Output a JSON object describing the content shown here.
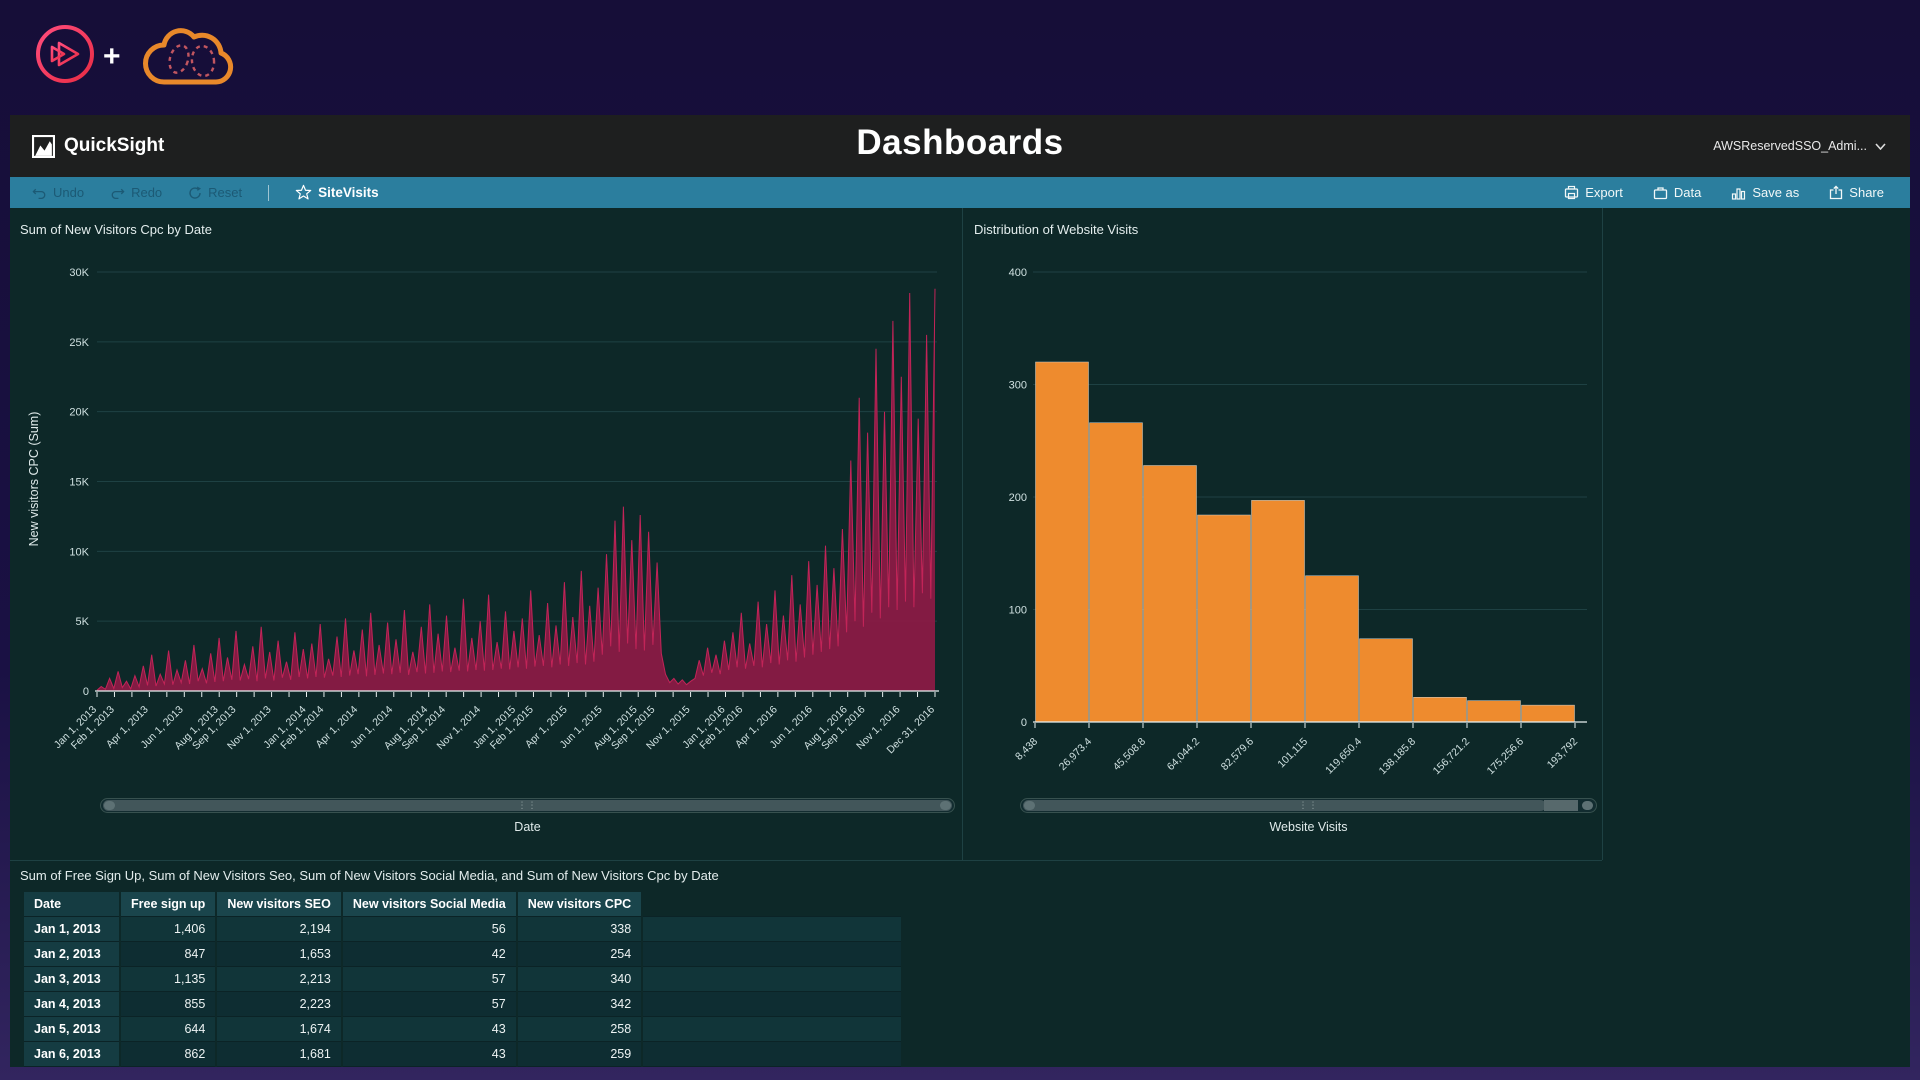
{
  "branding": {
    "plus": "+"
  },
  "app_header": {
    "product": "QuickSight",
    "title": "Dashboards",
    "account": "AWSReservedSSO_Admi..."
  },
  "toolbar": {
    "undo": "Undo",
    "redo": "Redo",
    "reset": "Reset",
    "dashboard_name": "SiteVisits",
    "export": "Export",
    "data": "Data",
    "save_as": "Save as",
    "share": "Share"
  },
  "colors": {
    "toolbar": "#2b7e9e",
    "content_bg": "#0d2828",
    "area_fill": "#8a1a45",
    "area_stroke": "#c22458",
    "bar_fill": "#ee8b2e",
    "grid": "#1e4143",
    "axis": "#e8f0f0",
    "tick_text": "#cfe0e0"
  },
  "chart_data": [
    {
      "type": "area",
      "title": "Sum of New Visitors Cpc by Date",
      "xlabel": "Date",
      "ylabel": "New visitors CPC (Sum)",
      "ylim": [
        0,
        30000
      ],
      "ytick_labels": [
        "30K",
        "25K",
        "20K",
        "15K",
        "10K",
        "5K",
        "0"
      ],
      "x_range": [
        "Jan 1, 2013",
        "Dec 31, 2016"
      ],
      "xticks": [
        {
          "label": "Jan 1, 2013",
          "pos": 0.0
        },
        {
          "label": "Feb 1, 2013",
          "pos": 0.0212
        },
        {
          "label": "Apr 1, 2013",
          "pos": 0.0616
        },
        {
          "label": "Jun 1, 2013",
          "pos": 0.1034
        },
        {
          "label": "Aug 1, 2013",
          "pos": 0.1452
        },
        {
          "label": "Sep 1, 2013",
          "pos": 0.1664
        },
        {
          "label": "Nov 1, 2013",
          "pos": 0.2082
        },
        {
          "label": "Jan 1, 2014",
          "pos": 0.25
        },
        {
          "label": "Feb 1, 2014",
          "pos": 0.2712
        },
        {
          "label": "Apr 1, 2014",
          "pos": 0.3116
        },
        {
          "label": "Jun 1, 2014",
          "pos": 0.3534
        },
        {
          "label": "Aug 1, 2014",
          "pos": 0.3952
        },
        {
          "label": "Sep 1, 2014",
          "pos": 0.4164
        },
        {
          "label": "Nov 1, 2014",
          "pos": 0.4582
        },
        {
          "label": "Jan 1, 2015",
          "pos": 0.5
        },
        {
          "label": "Feb 1, 2015",
          "pos": 0.5212
        },
        {
          "label": "Apr 1, 2015",
          "pos": 0.5616
        },
        {
          "label": "Jun 1, 2015",
          "pos": 0.6034
        },
        {
          "label": "Aug 1, 2015",
          "pos": 0.6452
        },
        {
          "label": "Sep 1, 2015",
          "pos": 0.6664
        },
        {
          "label": "Nov 1, 2015",
          "pos": 0.7082
        },
        {
          "label": "Jan 1, 2016",
          "pos": 0.75
        },
        {
          "label": "Feb 1, 2016",
          "pos": 0.7712
        },
        {
          "label": "Apr 1, 2016",
          "pos": 0.8123
        },
        {
          "label": "Jun 1, 2016",
          "pos": 0.8541
        },
        {
          "label": "Aug 1, 2016",
          "pos": 0.8959
        },
        {
          "label": "Sep 1, 2016",
          "pos": 0.9171
        },
        {
          "label": "Nov 1, 2016",
          "pos": 0.9589
        },
        {
          "label": "Dec 31, 2016",
          "pos": 1.0
        }
      ],
      "values": [
        60,
        320,
        120,
        900,
        180,
        1400,
        250,
        700,
        150,
        1100,
        300,
        1800,
        400,
        2600,
        350,
        1200,
        500,
        2900,
        450,
        1500,
        600,
        2200,
        500,
        3300,
        700,
        1600,
        550,
        2700,
        650,
        3800,
        700,
        2400,
        800,
        4300,
        750,
        1900,
        850,
        3200,
        700,
        4600,
        900,
        2800,
        750,
        3600,
        950,
        2100,
        800,
        4200,
        1000,
        3000,
        900,
        3400,
        1000,
        4800,
        950,
        2300,
        1100,
        3900,
        1000,
        5200,
        1100,
        2900,
        1200,
        4400,
        1050,
        5600,
        1150,
        3300,
        1250,
        4900,
        1200,
        3700,
        1300,
        5800,
        1150,
        2800,
        1350,
        4600,
        1250,
        6200,
        1300,
        4100,
        1400,
        5400,
        1350,
        3100,
        1450,
        6600,
        1400,
        3800,
        1500,
        5000,
        1450,
        6900,
        1500,
        3500,
        1600,
        5700,
        1550,
        4300,
        1700,
        5200,
        1600,
        7200,
        1750,
        4000,
        1800,
        6300,
        1700,
        4700,
        1900,
        7800,
        1800,
        5300,
        2000,
        8600,
        1900,
        6100,
        2100,
        7400,
        2600,
        9800,
        3200,
        12200,
        2800,
        13200,
        3400,
        10800,
        3000,
        12600,
        2900,
        11400,
        3300,
        9200,
        2700,
        1200,
        600,
        900,
        500,
        800,
        450,
        700,
        900,
        2200,
        1100,
        3100,
        1300,
        2600,
        1200,
        3600,
        1500,
        4200,
        1700,
        5600,
        1600,
        3400,
        1800,
        6400,
        1700,
        4800,
        2000,
        7200,
        1900,
        5400,
        2200,
        8300,
        2100,
        6200,
        2400,
        9300,
        2600,
        7600,
        2800,
        10400,
        3000,
        8800,
        3200,
        11600,
        4200,
        16500,
        5000,
        21000,
        4600,
        18500,
        5600,
        24500,
        5200,
        20000,
        6000,
        26500,
        5800,
        22500,
        6400,
        28500,
        6000,
        19500,
        7000,
        25500,
        6600,
        28800
      ]
    },
    {
      "type": "bar",
      "title": "Distribution of Website Visits",
      "xlabel": "Website Visits",
      "ylim": [
        0,
        400
      ],
      "ytick_labels": [
        "400",
        "300",
        "200",
        "100",
        "0"
      ],
      "bin_edges": [
        "8,438",
        "26,973.4",
        "45,508.8",
        "64,044.2",
        "82,579.6",
        "101,115",
        "119,650.4",
        "138,185.8",
        "156,721.2",
        "175,256.6",
        "193,792"
      ],
      "values": [
        320,
        266,
        228,
        184,
        197,
        130,
        74,
        22,
        19,
        15
      ]
    },
    {
      "type": "table",
      "title": "Sum of Free Sign Up, Sum of New Visitors Seo, Sum of New Visitors Social Media, and Sum of New Visitors Cpc by Date",
      "columns": [
        "Date",
        "Free sign up",
        "New visitors SEO",
        "New visitors Social Media",
        "New visitors CPC"
      ],
      "rows": [
        [
          "Jan 1, 2013",
          "1,406",
          "2,194",
          "56",
          "338"
        ],
        [
          "Jan 2, 2013",
          "847",
          "1,653",
          "42",
          "254"
        ],
        [
          "Jan 3, 2013",
          "1,135",
          "2,213",
          "57",
          "340"
        ],
        [
          "Jan 4, 2013",
          "855",
          "2,223",
          "57",
          "342"
        ],
        [
          "Jan 5, 2013",
          "644",
          "1,674",
          "43",
          "258"
        ],
        [
          "Jan 6, 2013",
          "862",
          "1,681",
          "43",
          "259"
        ]
      ]
    }
  ]
}
